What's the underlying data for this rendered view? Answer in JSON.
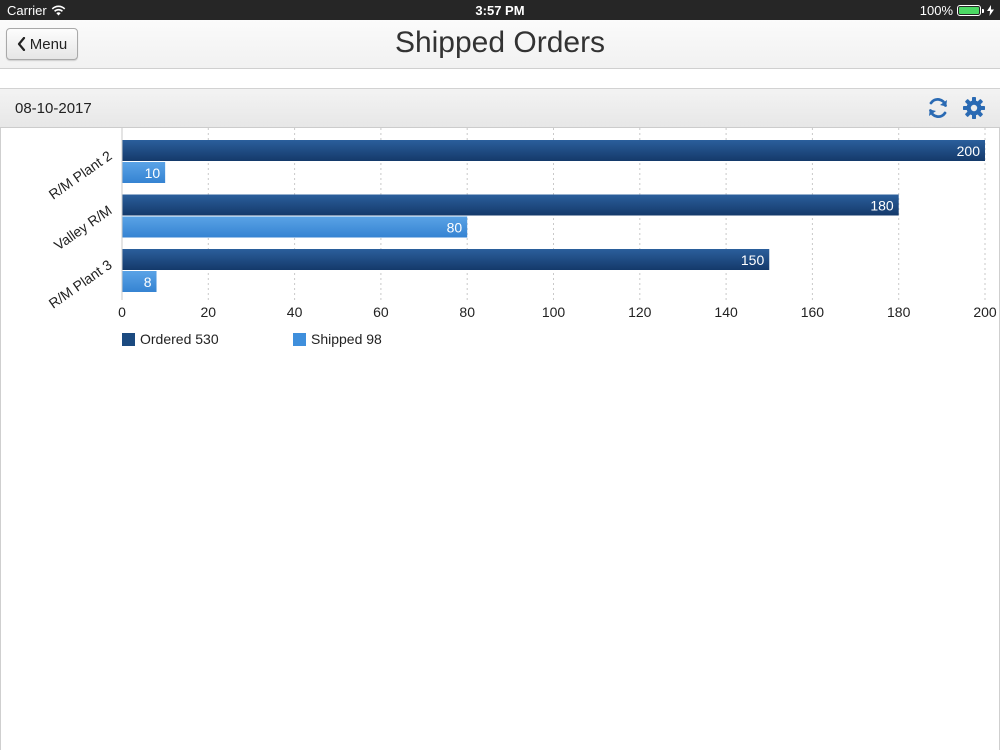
{
  "status_bar": {
    "carrier": "Carrier",
    "time": "3:57 PM",
    "battery": "100%",
    "icons": [
      "wifi-icon",
      "battery-icon",
      "charging-icon"
    ]
  },
  "nav": {
    "back_label": "Menu",
    "back_icon": "chevron-left-icon",
    "title": "Shipped Orders"
  },
  "toolbar": {
    "date": "08-10-2017",
    "icons": [
      "refresh-icon",
      "settings-icon"
    ],
    "icon_color": "#2a6ab3"
  },
  "legend": {
    "ordered_label": "Ordered 530",
    "shipped_label": "Shipped 98"
  },
  "colors": {
    "ordered": "#1b4a80",
    "shipped": "#3f8fdc"
  },
  "chart_data": {
    "type": "bar",
    "orientation": "horizontal",
    "categories": [
      "R/M Plant 2",
      "Valley R/M",
      "R/M Plant 3"
    ],
    "series": [
      {
        "name": "Ordered",
        "values": [
          200,
          180,
          150
        ]
      },
      {
        "name": "Shipped",
        "values": [
          10,
          80,
          8
        ]
      }
    ],
    "xlim": [
      0,
      200
    ],
    "x_ticks": [
      0,
      20,
      40,
      60,
      80,
      100,
      120,
      140,
      160,
      180,
      200
    ],
    "grid": true,
    "legend_placement": "bottom-left"
  }
}
